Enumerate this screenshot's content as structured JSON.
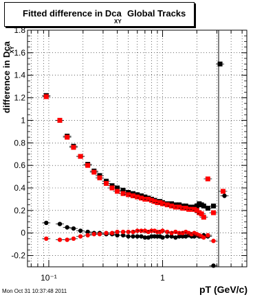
{
  "title": {
    "main": "Fitted difference in Dca",
    "sub": "XY",
    "tail": "Global Tracks"
  },
  "axes": {
    "ylabel": "difference in Dca",
    "ylabel_sub": "XY",
    "xlabel": "pT (GeV/c)"
  },
  "footer": {
    "timestamp": "Mon Oct 31 10:37:48 2011"
  },
  "colors": {
    "series_black": "#000000",
    "series_red": "#ff0000",
    "grid": "#000000"
  },
  "chart_data": {
    "type": "scatter",
    "xscale": "log",
    "xlim": [
      0.065,
      5.5
    ],
    "ylim": [
      -0.3,
      1.8
    ],
    "xticks": [
      {
        "value": 0.1,
        "label": "10⁻¹"
      },
      {
        "value": 1,
        "label": "1"
      }
    ],
    "yticks": [
      -0.2,
      0,
      0.2,
      0.4,
      0.6,
      0.8,
      1,
      1.2,
      1.4,
      1.6,
      1.8
    ],
    "grid": true,
    "series": [
      {
        "color": "black",
        "marker": "square",
        "points": [
          [
            0.095,
            1.22
          ],
          [
            0.125,
            1.0
          ],
          [
            0.145,
            0.86
          ],
          [
            0.165,
            0.77
          ],
          [
            0.19,
            0.68
          ],
          [
            0.22,
            0.61
          ],
          [
            0.25,
            0.55
          ],
          [
            0.28,
            0.51
          ],
          [
            0.32,
            0.46
          ],
          [
            0.36,
            0.42
          ],
          [
            0.4,
            0.4
          ],
          [
            0.45,
            0.38
          ],
          [
            0.5,
            0.36
          ],
          [
            0.55,
            0.35
          ],
          [
            0.6,
            0.34
          ],
          [
            0.65,
            0.33
          ],
          [
            0.7,
            0.32
          ],
          [
            0.75,
            0.31
          ],
          [
            0.8,
            0.3
          ],
          [
            0.85,
            0.29
          ],
          [
            0.9,
            0.28
          ],
          [
            0.95,
            0.28
          ],
          [
            1.0,
            0.27
          ],
          [
            1.1,
            0.26
          ],
          [
            1.2,
            0.26
          ],
          [
            1.3,
            0.25
          ],
          [
            1.4,
            0.25
          ],
          [
            1.5,
            0.24
          ],
          [
            1.6,
            0.24
          ],
          [
            1.7,
            0.23
          ],
          [
            1.8,
            0.23
          ],
          [
            1.9,
            0.23
          ],
          [
            2.0,
            0.24
          ],
          [
            2.1,
            0.26
          ],
          [
            2.2,
            0.25
          ],
          [
            2.3,
            0.24
          ],
          [
            2.5,
            0.22
          ],
          [
            2.8,
            0.24
          ],
          [
            3.2,
            1.5
          ]
        ]
      },
      {
        "color": "black",
        "marker": "circle",
        "points": [
          [
            0.095,
            0.09
          ],
          [
            0.125,
            0.08
          ],
          [
            0.145,
            0.05
          ],
          [
            0.165,
            0.04
          ],
          [
            0.19,
            0.02
          ],
          [
            0.22,
            0.01
          ],
          [
            0.25,
            0.0
          ],
          [
            0.28,
            0.0
          ],
          [
            0.32,
            -0.01
          ],
          [
            0.36,
            -0.01
          ],
          [
            0.4,
            -0.02
          ],
          [
            0.45,
            -0.02
          ],
          [
            0.5,
            -0.03
          ],
          [
            0.55,
            -0.03
          ],
          [
            0.6,
            -0.03
          ],
          [
            0.65,
            -0.03
          ],
          [
            0.7,
            -0.04
          ],
          [
            0.75,
            -0.04
          ],
          [
            0.8,
            -0.03
          ],
          [
            0.85,
            -0.03
          ],
          [
            0.9,
            -0.03
          ],
          [
            0.95,
            -0.03
          ],
          [
            1.0,
            -0.04
          ],
          [
            1.1,
            -0.03
          ],
          [
            1.2,
            -0.03
          ],
          [
            1.3,
            -0.04
          ],
          [
            1.4,
            -0.03
          ],
          [
            1.5,
            -0.03
          ],
          [
            1.6,
            -0.03
          ],
          [
            1.7,
            -0.02
          ],
          [
            1.8,
            -0.03
          ],
          [
            1.9,
            -0.03
          ],
          [
            2.0,
            -0.02
          ],
          [
            2.1,
            -0.03
          ],
          [
            2.2,
            -0.03
          ],
          [
            2.3,
            -0.02
          ],
          [
            2.5,
            -0.03
          ],
          [
            2.8,
            -0.29
          ],
          [
            3.5,
            0.33
          ]
        ]
      },
      {
        "color": "red",
        "marker": "square",
        "points": [
          [
            0.095,
            1.21
          ],
          [
            0.125,
            1.0
          ],
          [
            0.145,
            0.85
          ],
          [
            0.165,
            0.76
          ],
          [
            0.19,
            0.68
          ],
          [
            0.22,
            0.6
          ],
          [
            0.25,
            0.54
          ],
          [
            0.28,
            0.49
          ],
          [
            0.32,
            0.44
          ],
          [
            0.36,
            0.4
          ],
          [
            0.4,
            0.37
          ],
          [
            0.45,
            0.35
          ],
          [
            0.5,
            0.34
          ],
          [
            0.55,
            0.33
          ],
          [
            0.6,
            0.32
          ],
          [
            0.65,
            0.31
          ],
          [
            0.7,
            0.3
          ],
          [
            0.75,
            0.3
          ],
          [
            0.8,
            0.29
          ],
          [
            0.85,
            0.28
          ],
          [
            0.9,
            0.27
          ],
          [
            0.95,
            0.27
          ],
          [
            1.0,
            0.26
          ],
          [
            1.1,
            0.25
          ],
          [
            1.2,
            0.24
          ],
          [
            1.3,
            0.23
          ],
          [
            1.4,
            0.23
          ],
          [
            1.5,
            0.22
          ],
          [
            1.6,
            0.22
          ],
          [
            1.7,
            0.21
          ],
          [
            1.8,
            0.21
          ],
          [
            1.9,
            0.21
          ],
          [
            2.0,
            0.2
          ],
          [
            2.1,
            0.18
          ],
          [
            2.2,
            0.17
          ],
          [
            2.3,
            0.14
          ],
          [
            2.5,
            0.48
          ],
          [
            2.8,
            0.18
          ],
          [
            3.4,
            0.37
          ]
        ]
      },
      {
        "color": "red",
        "marker": "circle",
        "points": [
          [
            0.095,
            -0.05
          ],
          [
            0.125,
            -0.06
          ],
          [
            0.145,
            -0.06
          ],
          [
            0.165,
            -0.05
          ],
          [
            0.19,
            -0.03
          ],
          [
            0.22,
            -0.02
          ],
          [
            0.25,
            -0.01
          ],
          [
            0.28,
            -0.01
          ],
          [
            0.32,
            0.0
          ],
          [
            0.36,
            0.0
          ],
          [
            0.4,
            0.01
          ],
          [
            0.45,
            0.01
          ],
          [
            0.5,
            0.01
          ],
          [
            0.55,
            0.01
          ],
          [
            0.6,
            0.02
          ],
          [
            0.65,
            0.02
          ],
          [
            0.7,
            0.02
          ],
          [
            0.75,
            0.01
          ],
          [
            0.8,
            0.02
          ],
          [
            0.85,
            0.02
          ],
          [
            0.9,
            0.01
          ],
          [
            0.95,
            0.01
          ],
          [
            1.0,
            0.02
          ],
          [
            1.1,
            0.01
          ],
          [
            1.2,
            0.0
          ],
          [
            1.3,
            0.01
          ],
          [
            1.4,
            0.0
          ],
          [
            1.5,
            0.0
          ],
          [
            1.6,
            0.01
          ],
          [
            1.7,
            0.0
          ],
          [
            1.8,
            -0.01
          ],
          [
            1.9,
            0.0
          ],
          [
            2.0,
            -0.01
          ],
          [
            2.1,
            -0.02
          ],
          [
            2.2,
            -0.03
          ],
          [
            2.3,
            -0.04
          ],
          [
            2.5,
            -0.02
          ],
          [
            2.8,
            -0.07
          ]
        ]
      }
    ]
  }
}
